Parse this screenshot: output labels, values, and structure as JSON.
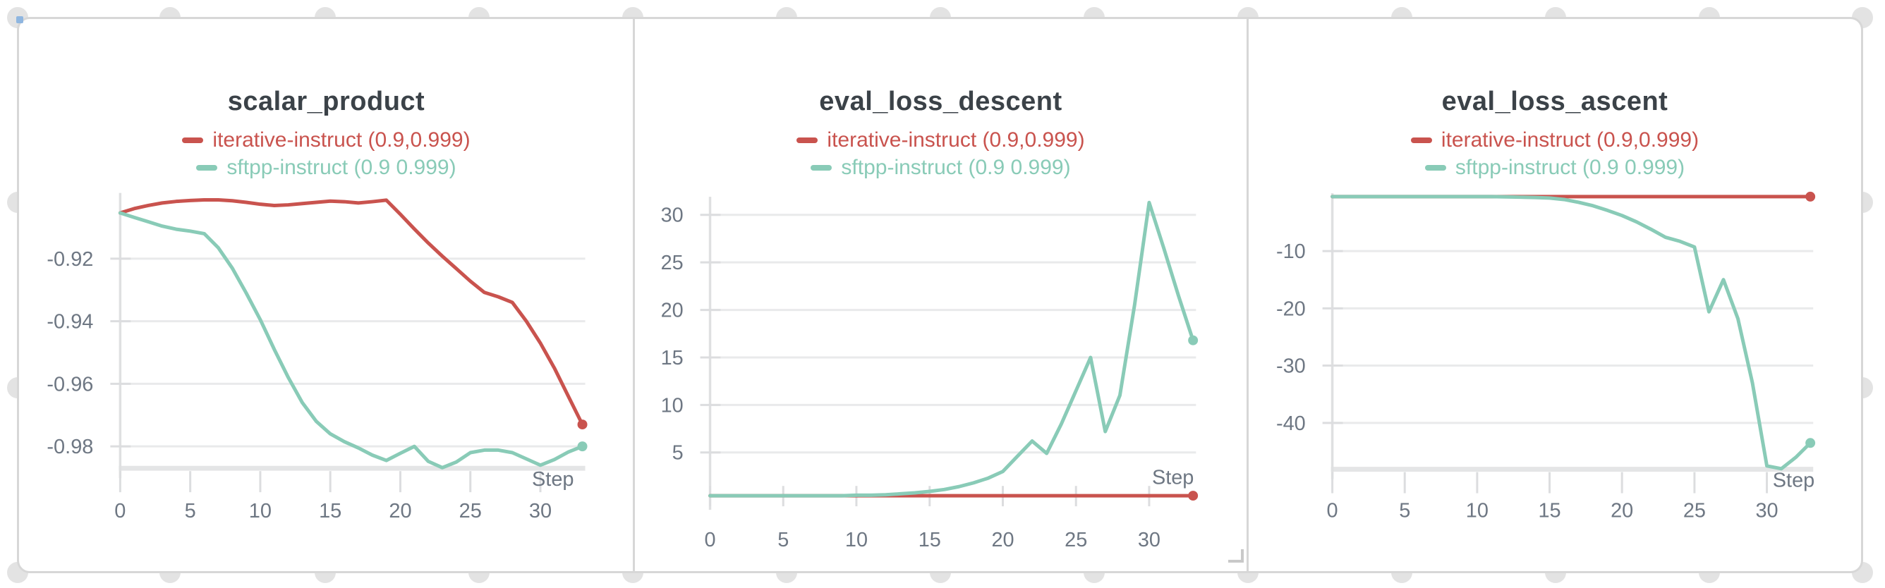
{
  "ui": {
    "colors": {
      "panel_border": "#d7d7d7",
      "grid_handle_dot": "#e3e3e3",
      "corner_square": "#8fb6e0",
      "title_text": "#3b4248",
      "axis_text": "#6e7783",
      "gridline": "#e9eaeb",
      "baseline": "#e4e5e6",
      "series_red": "#c9534e",
      "series_teal": "#89cbb7"
    }
  },
  "chart_data": [
    {
      "type": "line",
      "title": "scalar_product",
      "xlabel": "Step",
      "legend_position": "top",
      "grid": "horizontal",
      "x_ticks": [
        0,
        5,
        10,
        15,
        20,
        25,
        30
      ],
      "y_ticks": [
        -0.92,
        -0.94,
        -0.96,
        -0.98
      ],
      "xlim": [
        0,
        33.2
      ],
      "ylim": [
        -0.987,
        -0.899
      ],
      "x_step": 1,
      "series": [
        {
          "name": "iterative-instruct (0.9,0.999)",
          "color": "#c9534e",
          "end_marker": true,
          "values": [
            -0.9054,
            -0.904,
            -0.903,
            -0.9022,
            -0.9017,
            -0.9014,
            -0.9012,
            -0.9012,
            -0.9015,
            -0.902,
            -0.9026,
            -0.903,
            -0.9028,
            -0.9024,
            -0.902,
            -0.9016,
            -0.9018,
            -0.9022,
            -0.9018,
            -0.9013,
            -0.9058,
            -0.9105,
            -0.915,
            -0.9192,
            -0.9232,
            -0.9272,
            -0.9308,
            -0.9322,
            -0.934,
            -0.94,
            -0.947,
            -0.955,
            -0.964,
            -0.973
          ]
        },
        {
          "name": "sftpp-instruct (0.9 0.999)",
          "color": "#89cbb7",
          "end_marker": true,
          "values": [
            -0.9054,
            -0.9068,
            -0.9082,
            -0.9096,
            -0.9106,
            -0.9112,
            -0.912,
            -0.9165,
            -0.923,
            -0.931,
            -0.9395,
            -0.949,
            -0.958,
            -0.966,
            -0.972,
            -0.976,
            -0.9785,
            -0.9805,
            -0.9828,
            -0.9845,
            -0.9822,
            -0.98,
            -0.9848,
            -0.9868,
            -0.985,
            -0.982,
            -0.9812,
            -0.9812,
            -0.982,
            -0.984,
            -0.986,
            -0.9842,
            -0.9818,
            -0.98
          ]
        }
      ]
    },
    {
      "type": "line",
      "title": "eval_loss_descent",
      "xlabel": "Step",
      "legend_position": "top",
      "grid": "horizontal",
      "x_ticks": [
        0,
        5,
        10,
        15,
        20,
        25,
        30
      ],
      "y_ticks": [
        5,
        10,
        15,
        20,
        25,
        30
      ],
      "xlim": [
        0,
        33.2
      ],
      "ylim": [
        0,
        31.9
      ],
      "x_step": 1,
      "series": [
        {
          "name": "iterative-instruct (0.9,0.999)",
          "color": "#c9534e",
          "end_marker": true,
          "values": [
            0.45,
            0.45,
            0.45,
            0.45,
            0.45,
            0.45,
            0.45,
            0.45,
            0.45,
            0.45,
            0.45,
            0.45,
            0.45,
            0.45,
            0.45,
            0.45,
            0.45,
            0.45,
            0.45,
            0.45,
            0.45,
            0.45,
            0.45,
            0.45,
            0.45,
            0.45,
            0.45,
            0.45,
            0.45,
            0.45,
            0.45,
            0.45,
            0.45,
            0.45
          ]
        },
        {
          "name": "sftpp-instruct (0.9 0.999)",
          "color": "#89cbb7",
          "end_marker": true,
          "values": [
            0.45,
            0.45,
            0.45,
            0.45,
            0.45,
            0.45,
            0.45,
            0.45,
            0.45,
            0.45,
            0.5,
            0.5,
            0.55,
            0.65,
            0.75,
            0.9,
            1.1,
            1.4,
            1.8,
            2.3,
            3.0,
            4.6,
            6.2,
            4.9,
            8.0,
            11.5,
            15.0,
            7.2,
            11.0,
            20.5,
            31.3,
            26.5,
            21.5,
            16.8
          ]
        }
      ]
    },
    {
      "type": "line",
      "title": "eval_loss_ascent",
      "xlabel": "Step",
      "legend_position": "top",
      "grid": "horizontal",
      "x_ticks": [
        0,
        5,
        10,
        15,
        20,
        25,
        30
      ],
      "y_ticks": [
        -10,
        -20,
        -30,
        -40
      ],
      "xlim": [
        0,
        33.2
      ],
      "ylim": [
        -48.1,
        0.1
      ],
      "x_step": 1,
      "series": [
        {
          "name": "iterative-instruct (0.9,0.999)",
          "color": "#c9534e",
          "end_marker": true,
          "values": [
            -0.5,
            -0.5,
            -0.5,
            -0.5,
            -0.5,
            -0.5,
            -0.5,
            -0.5,
            -0.5,
            -0.5,
            -0.5,
            -0.5,
            -0.5,
            -0.5,
            -0.5,
            -0.5,
            -0.5,
            -0.5,
            -0.5,
            -0.5,
            -0.5,
            -0.5,
            -0.5,
            -0.5,
            -0.5,
            -0.5,
            -0.5,
            -0.5,
            -0.5,
            -0.5,
            -0.5,
            -0.5,
            -0.5,
            -0.5
          ]
        },
        {
          "name": "sftpp-instruct (0.9 0.999)",
          "color": "#89cbb7",
          "end_marker": true,
          "values": [
            -0.5,
            -0.5,
            -0.5,
            -0.5,
            -0.5,
            -0.5,
            -0.5,
            -0.5,
            -0.5,
            -0.5,
            -0.5,
            -0.5,
            -0.55,
            -0.6,
            -0.65,
            -0.75,
            -1.0,
            -1.5,
            -2.1,
            -2.9,
            -3.8,
            -4.9,
            -6.2,
            -7.6,
            -8.3,
            -9.3,
            -20.6,
            -15.0,
            -21.8,
            -33.0,
            -47.5,
            -48.0,
            -46.0,
            -43.5
          ]
        }
      ]
    }
  ]
}
